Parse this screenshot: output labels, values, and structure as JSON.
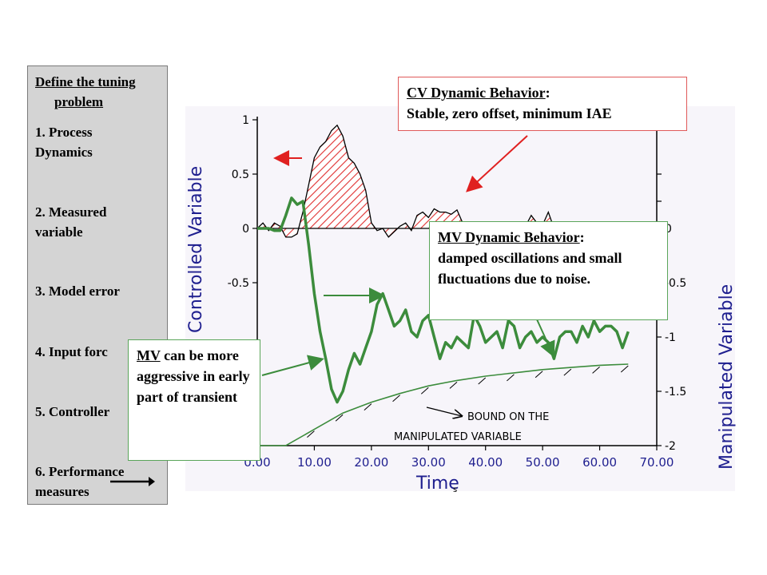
{
  "sidebar": {
    "heading_line1": "Define the tuning",
    "heading_line2": "problem",
    "items": [
      "1. Process\n    Dynamics",
      "2. Measured\n    variable",
      "3. Model error",
      "4. Input forc",
      "5. Controller",
      "6. Performance\n    measures"
    ]
  },
  "callouts": {
    "cv_title": "CV Dynamic Behavior",
    "cv_colon": ":",
    "cv_text": "Stable, zero offset, minimum IAE",
    "mv_title": "MV Dynamic Behavior",
    "mv_colon": ":",
    "mv_text": "damped oscillations and small fluctuations due to noise.",
    "mv2_title": "MV",
    "mv2_text": " can be more aggressive in early part of transient"
  },
  "colors": {
    "cv_fill": "#e03030",
    "mv_line": "#3c8c3c",
    "axis_label": "#1f1f8f",
    "arrow_red": "#e02020",
    "arrow_green": "#3c8c3c"
  },
  "chart_data": {
    "type": "line",
    "xlabel": "Time",
    "ylabel_left": "Controlled Variable",
    "ylabel_right": "Manipulated Variable",
    "xlim": [
      0,
      70
    ],
    "ylim_left": [
      -2,
      1
    ],
    "ylim_right": [
      -2,
      1
    ],
    "x_ticks": [
      "0.00",
      "10.00",
      "20.00",
      "30.00",
      "40.00",
      "50.00",
      "60.00",
      "70.00"
    ],
    "x_tick_values": [
      0,
      10,
      20,
      30,
      40,
      50,
      60,
      70
    ],
    "y_left_ticks": [
      "1",
      "0.5",
      "0",
      "-0.5"
    ],
    "y_left_tick_values": [
      1,
      0.5,
      0,
      -0.5
    ],
    "y_right_ticks": [
      "0",
      "-0.5",
      "-1",
      "-1.5",
      "-2"
    ],
    "y_right_tick_values": [
      0,
      -0.5,
      -1,
      -1.5,
      -2
    ],
    "bound_annotation_line1": "BOUND ON THE",
    "bound_annotation_line2": "MANIPULATED VARIABLE",
    "series": [
      {
        "name": "Controlled Variable",
        "x": [
          0,
          1,
          2,
          3,
          4,
          5,
          6,
          7,
          8,
          9,
          10,
          11,
          12,
          13,
          14,
          15,
          16,
          17,
          18,
          19,
          20,
          21,
          22,
          23,
          24,
          25,
          26,
          27,
          28,
          29,
          30,
          31,
          32,
          33,
          34,
          35,
          36,
          37,
          38,
          39,
          40,
          41,
          42,
          43,
          44,
          45,
          46,
          47,
          48,
          49,
          50,
          51,
          52,
          53,
          54,
          55,
          56,
          57,
          58,
          59,
          60,
          61,
          62,
          63,
          64,
          65
        ],
        "y": [
          0.0,
          0.05,
          -0.02,
          0.05,
          0.02,
          -0.08,
          -0.08,
          -0.05,
          0.15,
          0.4,
          0.65,
          0.75,
          0.8,
          0.9,
          0.95,
          0.85,
          0.65,
          0.6,
          0.5,
          0.35,
          0.05,
          -0.02,
          0.0,
          -0.08,
          -0.03,
          0.02,
          0.05,
          -0.02,
          0.12,
          0.15,
          0.1,
          0.18,
          0.15,
          0.15,
          0.13,
          0.17,
          0.05,
          -0.05,
          0.03,
          0.0,
          -0.05,
          -0.02,
          0.0,
          0.03,
          0.05,
          0.0,
          0.05,
          0.02,
          0.12,
          0.05,
          0.03,
          0.15,
          0.0,
          -0.05,
          0.03,
          -0.05,
          -0.05,
          -0.08,
          -0.1,
          -0.06,
          -0.03,
          0.0,
          0.03,
          -0.02,
          0.0,
          -0.02
        ]
      },
      {
        "name": "Manipulated Variable",
        "x": [
          0,
          1,
          2,
          3,
          4,
          5,
          6,
          7,
          8,
          9,
          10,
          11,
          12,
          13,
          14,
          15,
          16,
          17,
          18,
          19,
          20,
          21,
          22,
          23,
          24,
          25,
          26,
          27,
          28,
          29,
          30,
          31,
          32,
          33,
          34,
          35,
          36,
          37,
          38,
          39,
          40,
          41,
          42,
          43,
          44,
          45,
          46,
          47,
          48,
          49,
          50,
          51,
          52,
          53,
          54,
          55,
          56,
          57,
          58,
          59,
          60,
          61,
          62,
          63,
          64,
          65
        ],
        "y": [
          0.0,
          0.0,
          0.0,
          -0.02,
          -0.02,
          0.12,
          0.28,
          0.22,
          0.25,
          -0.15,
          -0.6,
          -0.95,
          -1.2,
          -1.48,
          -1.6,
          -1.5,
          -1.3,
          -1.15,
          -1.25,
          -1.1,
          -0.95,
          -0.7,
          -0.6,
          -0.75,
          -0.9,
          -0.85,
          -0.75,
          -0.95,
          -1.0,
          -0.85,
          -0.8,
          -1.0,
          -1.2,
          -1.05,
          -1.1,
          -1.0,
          -1.05,
          -1.1,
          -0.8,
          -0.9,
          -1.05,
          -1.0,
          -0.95,
          -1.1,
          -0.85,
          -0.9,
          -1.1,
          -1.0,
          -0.95,
          -1.05,
          -1.0,
          -1.05,
          -1.2,
          -1.0,
          -0.95,
          -0.95,
          -1.05,
          -0.9,
          -1.0,
          -0.85,
          -0.95,
          -0.9,
          -0.9,
          -0.95,
          -1.1,
          -0.95
        ]
      },
      {
        "name": "BOUND ON THE MANIPULATED VARIABLE",
        "x": [
          0,
          5,
          10,
          15,
          20,
          25,
          30,
          35,
          40,
          45,
          50,
          55,
          60,
          65
        ],
        "y": [
          -2.0,
          -2.0,
          -1.85,
          -1.7,
          -1.6,
          -1.52,
          -1.45,
          -1.4,
          -1.36,
          -1.33,
          -1.3,
          -1.28,
          -1.26,
          -1.25
        ]
      }
    ]
  }
}
